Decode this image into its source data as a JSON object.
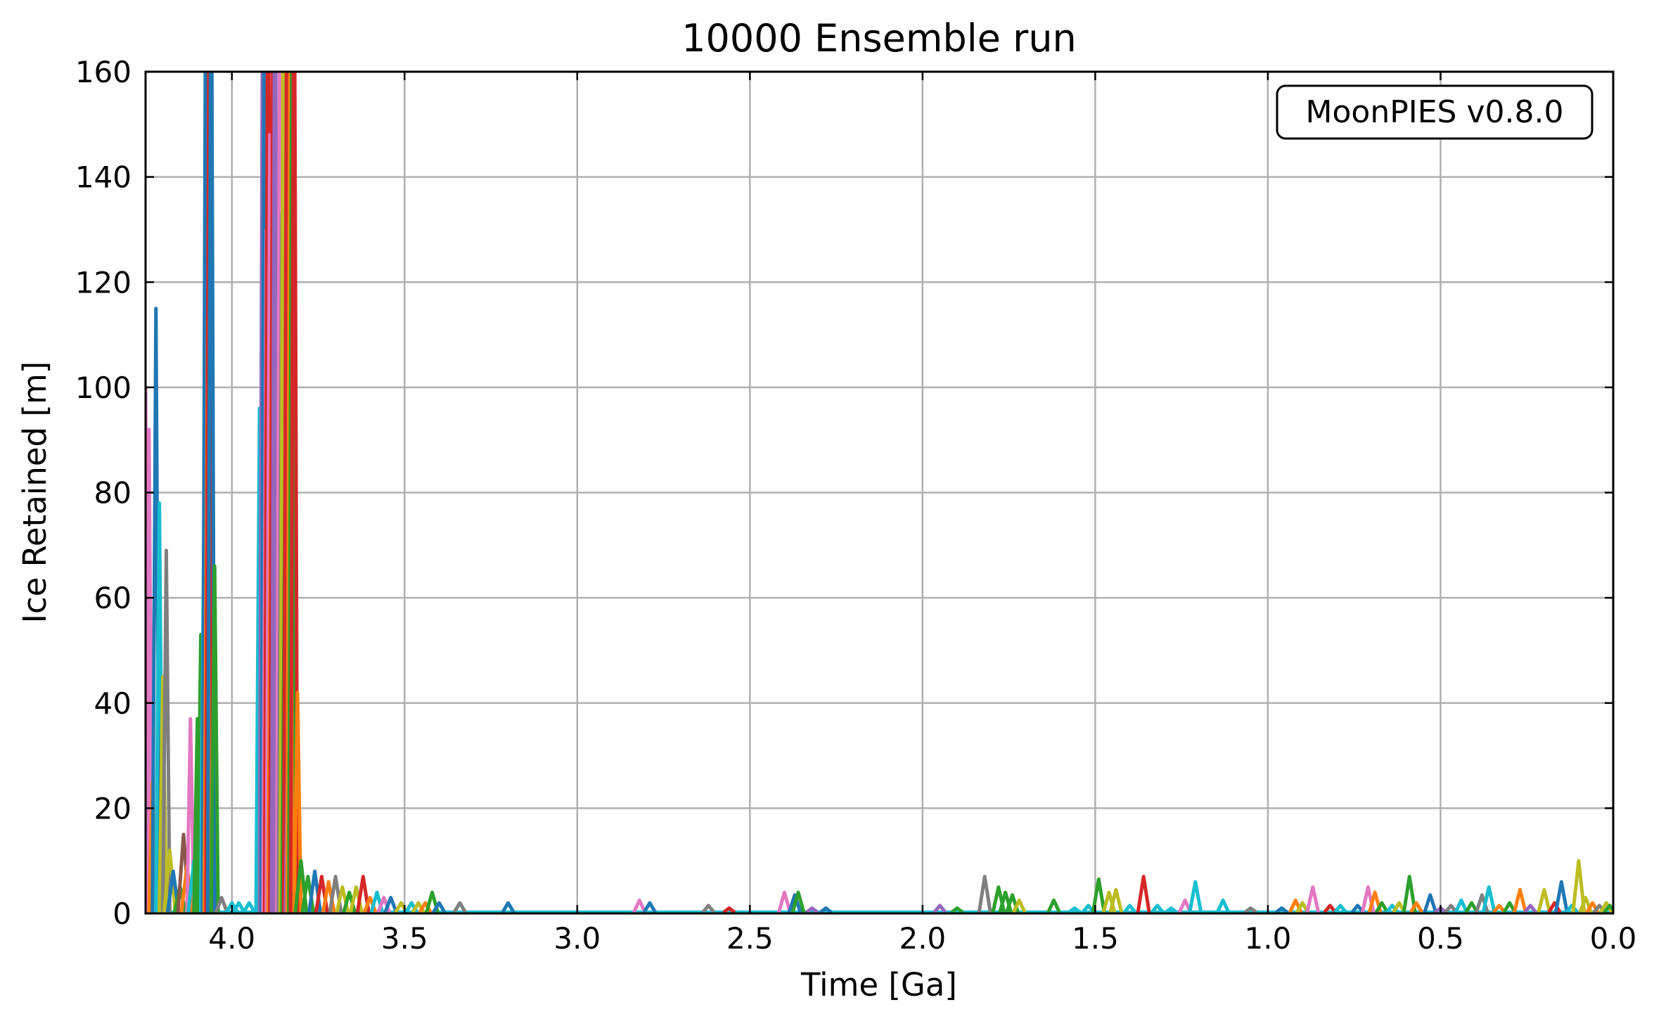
{
  "chart_data": {
    "type": "line",
    "title": "10000 Ensemble run",
    "xlabel": "Time [Ga]",
    "ylabel": "Ice Retained [m]",
    "annotation": "MoonPIES v0.8.0",
    "xlim": [
      4.25,
      0.0
    ],
    "ylim": [
      0,
      160
    ],
    "x_inverted": true,
    "grid": true,
    "legend": "none",
    "x_ticks": [
      4.0,
      3.5,
      3.0,
      2.5,
      2.0,
      1.5,
      1.0,
      0.5,
      0.0
    ],
    "x_tick_labels": [
      "4.0",
      "3.5",
      "3.0",
      "2.5",
      "2.0",
      "1.5",
      "1.0",
      "0.5",
      "0.0"
    ],
    "y_ticks": [
      0,
      20,
      40,
      60,
      80,
      100,
      120,
      140,
      160
    ],
    "y_tick_labels": [
      "0",
      "20",
      "40",
      "60",
      "80",
      "100",
      "120",
      "140",
      "160"
    ],
    "palette": [
      "#1f77b4",
      "#ff7f0e",
      "#2ca02c",
      "#d62728",
      "#9467bd",
      "#8c564b",
      "#e377c2",
      "#7f7f7f",
      "#bcbd22",
      "#17becf"
    ],
    "series_note": "Spikes of retained ice per ensemble run; each spike given as [time Ga, peak m, color index]. Peaks above 160 are clipped by the axes.",
    "spikes": [
      [
        4.25,
        100,
        6
      ],
      [
        4.24,
        92,
        6
      ],
      [
        4.23,
        25,
        1
      ],
      [
        4.22,
        115,
        0
      ],
      [
        4.21,
        78,
        9
      ],
      [
        4.2,
        45,
        8
      ],
      [
        4.19,
        69,
        7
      ],
      [
        4.18,
        12,
        8
      ],
      [
        4.17,
        8,
        0
      ],
      [
        4.15,
        5,
        2
      ],
      [
        4.14,
        15,
        5
      ],
      [
        4.13,
        9,
        1
      ],
      [
        4.12,
        37,
        6
      ],
      [
        4.11,
        10,
        9
      ],
      [
        4.1,
        37,
        2
      ],
      [
        4.09,
        53,
        2
      ],
      [
        4.08,
        83,
        9
      ],
      [
        4.075,
        200,
        0
      ],
      [
        4.07,
        113,
        1
      ],
      [
        4.065,
        200,
        3
      ],
      [
        4.06,
        200,
        0
      ],
      [
        4.05,
        66,
        2
      ],
      [
        4.03,
        3,
        7
      ],
      [
        4.0,
        2,
        9
      ],
      [
        3.98,
        2,
        9
      ],
      [
        3.95,
        2,
        9
      ],
      [
        3.92,
        96,
        9
      ],
      [
        3.91,
        200,
        4
      ],
      [
        3.905,
        200,
        0
      ],
      [
        3.9,
        130,
        6
      ],
      [
        3.895,
        200,
        3
      ],
      [
        3.89,
        148,
        6
      ],
      [
        3.885,
        110,
        1
      ],
      [
        3.88,
        200,
        3
      ],
      [
        3.875,
        200,
        4
      ],
      [
        3.87,
        107,
        4
      ],
      [
        3.86,
        200,
        6
      ],
      [
        3.855,
        133,
        7
      ],
      [
        3.85,
        200,
        8
      ],
      [
        3.845,
        90,
        2
      ],
      [
        3.84,
        200,
        3
      ],
      [
        3.835,
        47,
        4
      ],
      [
        3.83,
        200,
        1
      ],
      [
        3.825,
        200,
        2
      ],
      [
        3.82,
        200,
        3
      ],
      [
        3.81,
        42,
        1
      ],
      [
        3.8,
        10,
        2
      ],
      [
        3.78,
        7,
        2
      ],
      [
        3.76,
        8,
        0
      ],
      [
        3.74,
        7,
        3
      ],
      [
        3.72,
        6,
        1
      ],
      [
        3.7,
        7,
        7
      ],
      [
        3.68,
        5,
        8
      ],
      [
        3.66,
        4,
        2
      ],
      [
        3.64,
        5,
        8
      ],
      [
        3.62,
        7,
        3
      ],
      [
        3.6,
        3,
        1
      ],
      [
        3.58,
        4,
        9
      ],
      [
        3.56,
        3,
        6
      ],
      [
        3.54,
        3,
        0
      ],
      [
        3.51,
        2,
        8
      ],
      [
        3.48,
        2,
        9
      ],
      [
        3.46,
        2,
        8
      ],
      [
        3.44,
        2,
        1
      ],
      [
        3.42,
        4,
        2
      ],
      [
        3.4,
        2,
        0
      ],
      [
        3.34,
        2,
        7
      ],
      [
        3.2,
        2,
        0
      ],
      [
        2.82,
        2.5,
        6
      ],
      [
        2.79,
        2,
        0
      ],
      [
        2.62,
        1.5,
        7
      ],
      [
        2.56,
        1,
        3
      ],
      [
        2.4,
        4,
        6
      ],
      [
        2.37,
        3.5,
        0
      ],
      [
        2.36,
        4,
        2
      ],
      [
        2.32,
        1,
        4
      ],
      [
        2.28,
        1,
        0
      ],
      [
        1.95,
        1.5,
        4
      ],
      [
        1.9,
        1,
        2
      ],
      [
        1.82,
        7,
        7
      ],
      [
        1.78,
        5,
        2
      ],
      [
        1.76,
        4,
        2
      ],
      [
        1.74,
        3.5,
        2
      ],
      [
        1.72,
        2.5,
        8
      ],
      [
        1.62,
        2.5,
        2
      ],
      [
        1.56,
        1,
        9
      ],
      [
        1.52,
        1.5,
        9
      ],
      [
        1.49,
        6.5,
        2
      ],
      [
        1.46,
        4,
        8
      ],
      [
        1.44,
        4.5,
        8
      ],
      [
        1.4,
        1.5,
        9
      ],
      [
        1.36,
        7,
        3
      ],
      [
        1.32,
        1.5,
        9
      ],
      [
        1.28,
        1,
        9
      ],
      [
        1.24,
        2.5,
        6
      ],
      [
        1.21,
        6,
        9
      ],
      [
        1.13,
        2.5,
        9
      ],
      [
        1.05,
        1,
        7
      ],
      [
        0.96,
        1,
        0
      ],
      [
        0.92,
        2.5,
        1
      ],
      [
        0.9,
        2,
        8
      ],
      [
        0.87,
        5,
        6
      ],
      [
        0.82,
        1.5,
        3
      ],
      [
        0.79,
        1.5,
        9
      ],
      [
        0.74,
        1.5,
        0
      ],
      [
        0.71,
        5,
        6
      ],
      [
        0.69,
        4,
        1
      ],
      [
        0.67,
        2,
        2
      ],
      [
        0.64,
        1.5,
        9
      ],
      [
        0.62,
        2,
        8
      ],
      [
        0.59,
        7,
        2
      ],
      [
        0.57,
        2,
        1
      ],
      [
        0.53,
        3.5,
        0
      ],
      [
        0.5,
        1,
        4
      ],
      [
        0.47,
        1.5,
        7
      ],
      [
        0.44,
        2.5,
        9
      ],
      [
        0.41,
        2,
        2
      ],
      [
        0.38,
        3.5,
        7
      ],
      [
        0.36,
        5,
        9
      ],
      [
        0.33,
        1.5,
        1
      ],
      [
        0.3,
        2,
        2
      ],
      [
        0.27,
        4.5,
        1
      ],
      [
        0.24,
        1.5,
        4
      ],
      [
        0.2,
        4.5,
        8
      ],
      [
        0.17,
        2,
        3
      ],
      [
        0.15,
        6,
        0
      ],
      [
        0.12,
        1.5,
        9
      ],
      [
        0.1,
        10,
        8
      ],
      [
        0.08,
        3,
        8
      ],
      [
        0.06,
        2,
        1
      ],
      [
        0.04,
        1.5,
        7
      ],
      [
        0.02,
        2,
        8
      ],
      [
        0.01,
        1.5,
        2
      ]
    ]
  }
}
